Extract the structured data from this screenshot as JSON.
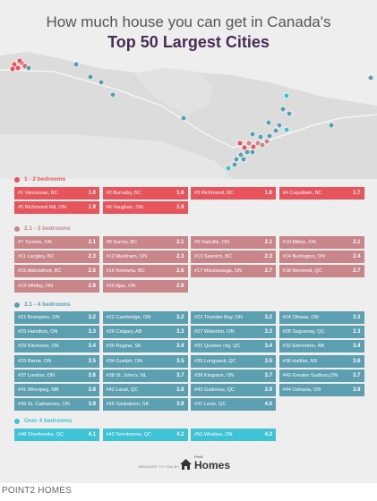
{
  "title_line1": "How much house you can get in Canada's",
  "title_line2": "Top 50 Largest Cities",
  "categories": [
    {
      "label": "1 - 2 bedrooms",
      "color": "#e8545b",
      "cities": [
        {
          "label": "#1 Vancouver, BC",
          "value": "1.0"
        },
        {
          "label": "#2 Burnaby, BC",
          "value": "1.6"
        },
        {
          "label": "#3 Richmond, BC",
          "value": "1.6"
        },
        {
          "label": "#4 Coquitlam, BC",
          "value": "1.7"
        },
        {
          "label": "#5 Richmond Hill, ON",
          "value": "1.9"
        },
        {
          "label": "#6 Vaughan, ON",
          "value": "1.9"
        }
      ]
    },
    {
      "label": "2.1 - 3 bedrooms",
      "color": "#c8868a",
      "cities": [
        {
          "label": "#7 Toronto, ON",
          "value": "2.1"
        },
        {
          "label": "#8 Surrey, BC",
          "value": "2.1"
        },
        {
          "label": "#9 Oakville, ON",
          "value": "2.1"
        },
        {
          "label": "#10 Milton, ON",
          "value": "2.1"
        },
        {
          "label": "#11 Langley, BC",
          "value": "2.3"
        },
        {
          "label": "#12 Markham, ON",
          "value": "2.3"
        },
        {
          "label": "#13 Saanich, BC",
          "value": "2.3"
        },
        {
          "label": "#14 Burlington, ON",
          "value": "2.4"
        },
        {
          "label": "#15 Abbotsford, BC",
          "value": "2.5"
        },
        {
          "label": "#16 Kelowna, BC",
          "value": "2.6"
        },
        {
          "label": "#17 Mississauga, ON",
          "value": "2.7"
        },
        {
          "label": "#18 Montreal, QC",
          "value": "2.7"
        },
        {
          "label": "#19 Whitby, ON",
          "value": "2.9"
        },
        {
          "label": "#20 Ajax, ON",
          "value": "2.9"
        }
      ]
    },
    {
      "label": "3.1 - 4 bedrooms",
      "color": "#5c9fb0",
      "cities": [
        {
          "label": "#21 Brampton, ON",
          "value": "3.2"
        },
        {
          "label": "#22 Cambridge, ON",
          "value": "3.2"
        },
        {
          "label": "#23 Thunder Bay, ON",
          "value": "3.2"
        },
        {
          "label": "#24 Ottawa, ON",
          "value": "3.3"
        },
        {
          "label": "#25 Hamilton, ON",
          "value": "3.3"
        },
        {
          "label": "#26 Calgary, AB",
          "value": "3.3"
        },
        {
          "label": "#27 Waterloo, ON",
          "value": "3.3"
        },
        {
          "label": "#28 Saguenay, QC",
          "value": "3.3"
        },
        {
          "label": "#29 Kitchener, ON",
          "value": "3.4"
        },
        {
          "label": "#30 Regina, SK",
          "value": "3.4"
        },
        {
          "label": "#31 Quebec city, QC",
          "value": "3.4"
        },
        {
          "label": "#32 Edmonton, AB",
          "value": "3.4"
        },
        {
          "label": "#33 Barrie, ON",
          "value": "3.5"
        },
        {
          "label": "#34 Guelph, ON",
          "value": "3.5"
        },
        {
          "label": "#35 Longueuil, QC",
          "value": "3.5"
        },
        {
          "label": "#36 Halifax, NS",
          "value": "3.6"
        },
        {
          "label": "#37 London, ON",
          "value": "3.6"
        },
        {
          "label": "#38 St. John's, NL",
          "value": "3.7"
        },
        {
          "label": "#39 Kingston, ON",
          "value": "3.7"
        },
        {
          "label": "#40 Greater Sudbury,ON",
          "value": "3.7"
        },
        {
          "label": "#41 Winnipeg, MB",
          "value": "3.8"
        },
        {
          "label": "#42 Laval, QC",
          "value": "3.8"
        },
        {
          "label": "#43 Gatineau, QC",
          "value": "3.9"
        },
        {
          "label": "#44 Oshawa, ON",
          "value": "3.9"
        },
        {
          "label": "#45 St. Catharines, ON",
          "value": "3.9"
        },
        {
          "label": "#46 Saskatoon, SK",
          "value": "3.9"
        },
        {
          "label": "#47 Levis, QC",
          "value": "4.0"
        }
      ]
    },
    {
      "label": "Over 4 bedrooms",
      "color": "#3dc2d6",
      "cities": [
        {
          "label": "#48 Sherbrooke, QC",
          "value": "4.1"
        },
        {
          "label": "#49 Terrebonne, QC",
          "value": "4.2"
        },
        {
          "label": "#50 Windsor, ON",
          "value": "4.3"
        }
      ]
    }
  ],
  "brought_by": "BROUGHT TO YOU BY",
  "logo_small": "Point2",
  "logo_big": "Homes",
  "caption": "POINT2 HOMES"
}
